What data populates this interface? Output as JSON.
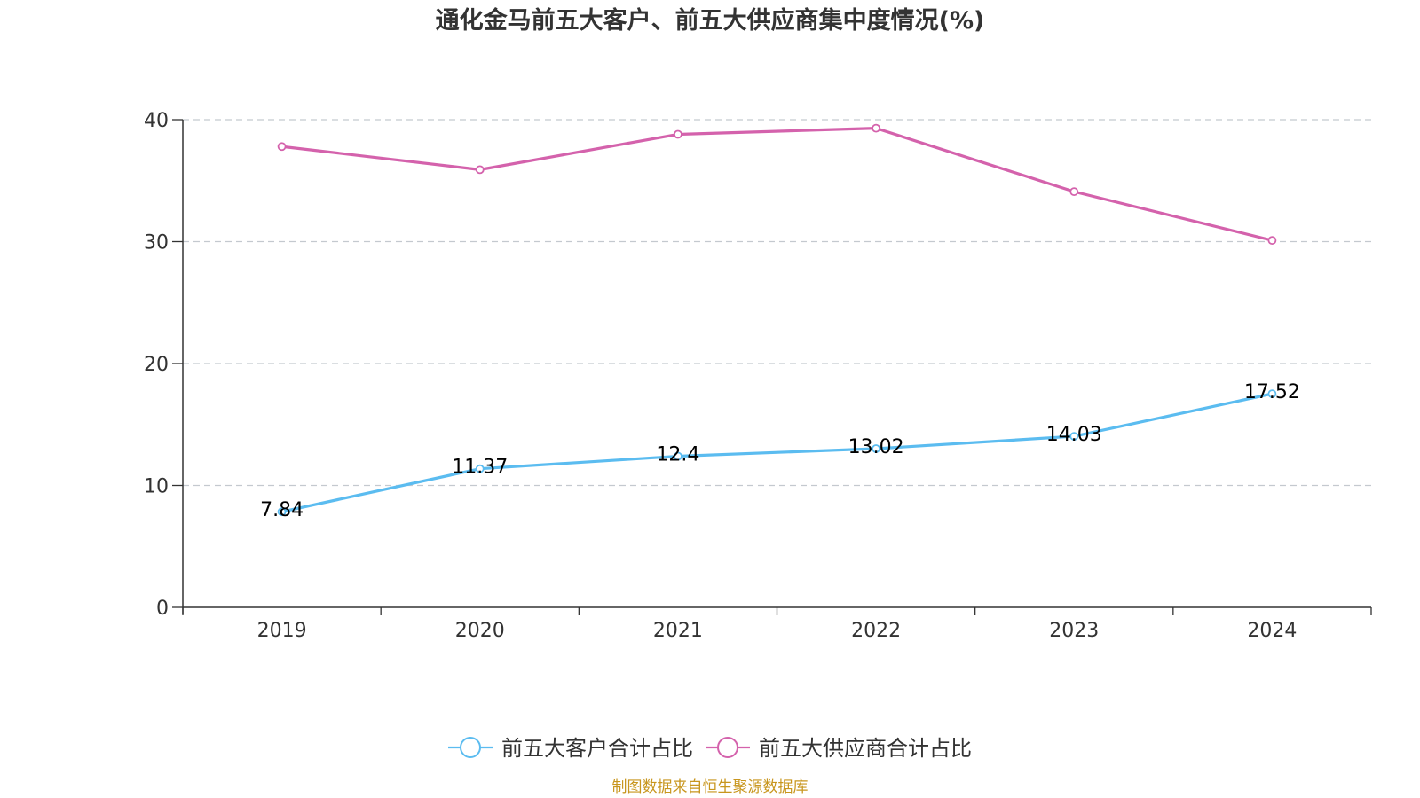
{
  "chart_data": {
    "type": "line",
    "title": "通化金马前五大客户、前五大供应商集中度情况(%)",
    "categories": [
      "2019",
      "2020",
      "2021",
      "2022",
      "2023",
      "2024"
    ],
    "ylim": [
      0,
      40
    ],
    "yticks": [
      0,
      10,
      20,
      30,
      40
    ],
    "grid": true,
    "legend_position": "bottom-center",
    "series": [
      {
        "name": "前五大客户合计占比",
        "color": "#5bbcf0",
        "values": [
          7.84,
          11.37,
          12.4,
          13.02,
          14.03,
          17.52
        ],
        "labels": [
          "7.84",
          "11.37",
          "12.4",
          "13.02",
          "14.03",
          "17.52"
        ],
        "show_labels": true
      },
      {
        "name": "前五大供应商合计占比",
        "color": "#d462ac",
        "values": [
          37.8,
          35.9,
          38.8,
          39.3,
          34.1,
          30.1
        ],
        "show_labels": false
      }
    ]
  },
  "source": {
    "text": "制图数据来自恒生聚源数据库",
    "color": "#c8961e"
  }
}
